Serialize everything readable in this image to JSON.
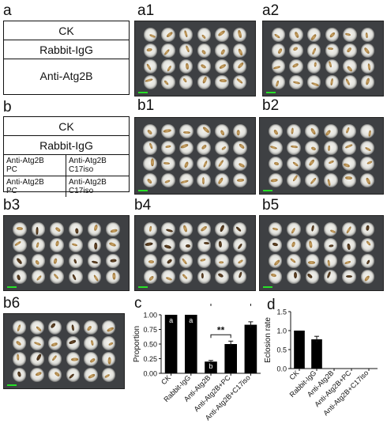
{
  "panels": {
    "a": "a",
    "a1": "a1",
    "a2": "a2",
    "b": "b",
    "b1": "b1",
    "b2": "b2",
    "b3": "b3",
    "b4": "b4",
    "b5": "b5",
    "b6": "b6",
    "c": "c",
    "d": "d"
  },
  "table_a": {
    "row1": "CK",
    "row2": "Rabbit-IgG",
    "row3": "Anti-Atg2B"
  },
  "table_b": {
    "row1": "CK",
    "row2": "Rabbit-IgG",
    "cells": [
      [
        "Anti-Atg2B",
        "PC"
      ],
      [
        "Anti-Atg2B",
        "C17iso"
      ],
      [
        "Anti-Atg2B",
        "PC"
      ],
      [
        "Anti-Atg2B",
        "C17iso"
      ]
    ]
  },
  "colors": {
    "bar": "#000000",
    "scale_bar": "#27e027",
    "tray": "#3e4043"
  },
  "chart_data": [
    {
      "type": "bar",
      "panel": "c",
      "categories": [
        "CK",
        "Rabbit-IgG",
        "Anti-Atg2B",
        "Anti-Atg2B+PC",
        "Anti-Atg2B+C17iso"
      ],
      "values": [
        1.0,
        1.0,
        0.2,
        0.5,
        0.83
      ],
      "errors": [
        0.0,
        0.0,
        0.02,
        0.05,
        0.05
      ],
      "letters": [
        "a",
        "a",
        "b",
        "",
        ""
      ],
      "significance": [
        {
          "from": "Anti-Atg2B",
          "to": "Anti-Atg2B+PC",
          "label": "**"
        },
        {
          "from": "Anti-Atg2B",
          "to": "Anti-Atg2B+C17iso",
          "label": "**"
        }
      ],
      "ylabel": "Proportion",
      "ylim": [
        0,
        1
      ],
      "yticks": [
        "0.00",
        "0.25",
        "0.50",
        "0.75",
        "1.00"
      ]
    },
    {
      "type": "bar",
      "panel": "d",
      "categories": [
        "CK",
        "Rabbit-IgG",
        "Anti-Atg2B",
        "Anti-Atg2B+PC",
        "Anti-Atg2B+C17iso"
      ],
      "values": [
        1.0,
        0.77,
        0,
        0,
        0
      ],
      "errors": [
        0.0,
        0.08,
        0,
        0,
        0
      ],
      "ylabel": "Eclosion rate",
      "ylim": [
        0,
        1.5
      ],
      "yticks": [
        "0.0",
        "0.5",
        "1.0",
        "1.5"
      ]
    }
  ]
}
